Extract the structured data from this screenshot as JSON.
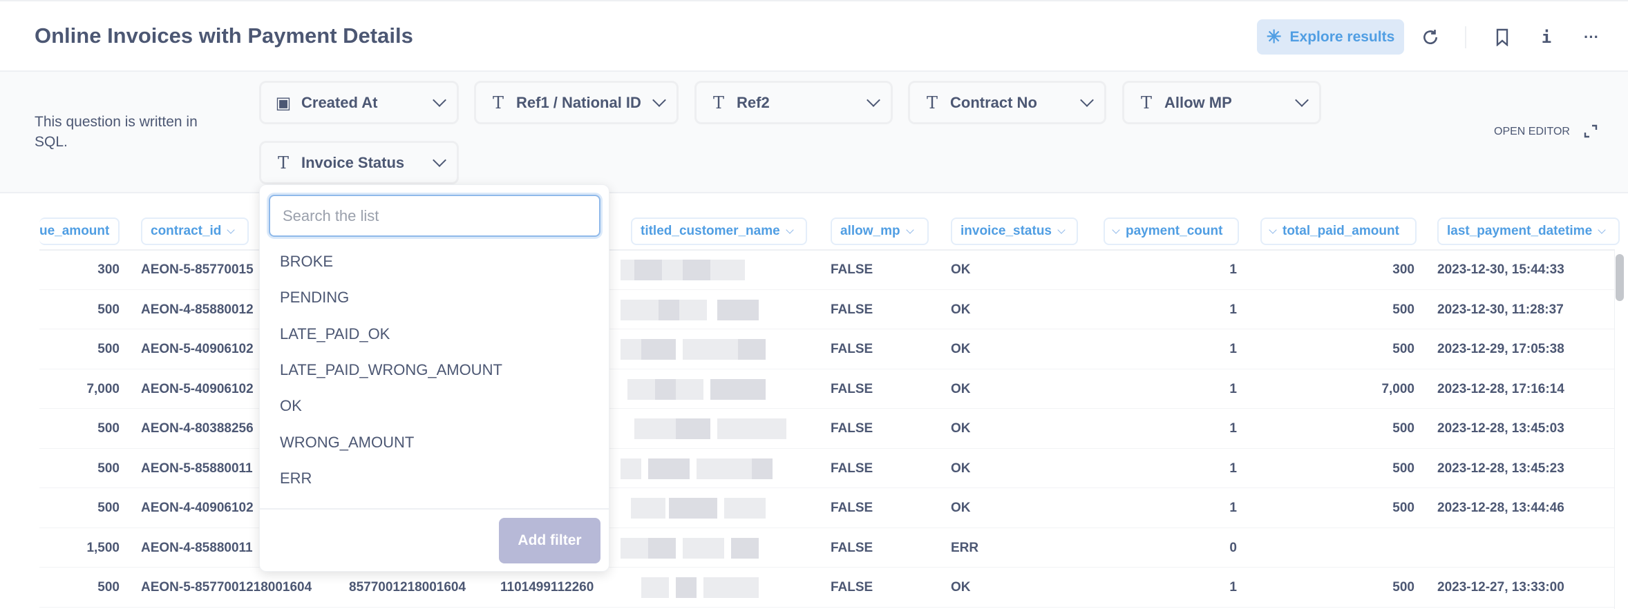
{
  "header": {
    "title": "Online Invoices with Payment Details",
    "explore_label": "Explore results",
    "icons": [
      "sparkle-icon",
      "refresh-icon",
      "bookmark-icon",
      "info-icon",
      "more-icon"
    ]
  },
  "filters": {
    "sql_note": "This question is written in SQL.",
    "open_editor": "OPEN EDITOR",
    "chips": [
      {
        "label": "Created At",
        "icon": "calendar-icon"
      },
      {
        "label": "Ref1 / National ID",
        "icon": "text-icon"
      },
      {
        "label": "Ref2",
        "icon": "text-icon"
      },
      {
        "label": "Contract No",
        "icon": "text-icon"
      },
      {
        "label": "Allow MP",
        "icon": "text-icon"
      },
      {
        "label": "Invoice Status",
        "icon": "text-icon"
      }
    ]
  },
  "dropdown": {
    "search_placeholder": "Search the list",
    "options": [
      "BROKE",
      "PENDING",
      "LATE_PAID_OK",
      "LATE_PAID_WRONG_AMOUNT",
      "OK",
      "WRONG_AMOUNT",
      "ERR"
    ],
    "add_filter": "Add filter"
  },
  "table": {
    "columns": [
      "ue_amount",
      "contract_id",
      "titled_customer_name",
      "allow_mp",
      "invoice_status",
      "payment_count",
      "total_paid_amount",
      "last_payment_datetime"
    ],
    "rows": [
      {
        "amount": "300",
        "contract_id": "AEON-5-85770015",
        "c3": "",
        "c4": "",
        "allow_mp": "FALSE",
        "invoice_status": "OK",
        "payment_count": "1",
        "total_paid_amount": "300",
        "last_payment_datetime": "2023-12-30, 15:44:33"
      },
      {
        "amount": "500",
        "contract_id": "AEON-4-85880012",
        "c3": "",
        "c4": "",
        "allow_mp": "FALSE",
        "invoice_status": "OK",
        "payment_count": "1",
        "total_paid_amount": "500",
        "last_payment_datetime": "2023-12-30, 11:28:37"
      },
      {
        "amount": "500",
        "contract_id": "AEON-5-40906102",
        "c3": "",
        "c4": "",
        "allow_mp": "FALSE",
        "invoice_status": "OK",
        "payment_count": "1",
        "total_paid_amount": "500",
        "last_payment_datetime": "2023-12-29, 17:05:38"
      },
      {
        "amount": "7,000",
        "contract_id": "AEON-5-40906102",
        "c3": "",
        "c4": "",
        "allow_mp": "FALSE",
        "invoice_status": "OK",
        "payment_count": "1",
        "total_paid_amount": "7,000",
        "last_payment_datetime": "2023-12-28, 17:16:14"
      },
      {
        "amount": "500",
        "contract_id": "AEON-4-80388256",
        "c3": "",
        "c4": "",
        "allow_mp": "FALSE",
        "invoice_status": "OK",
        "payment_count": "1",
        "total_paid_amount": "500",
        "last_payment_datetime": "2023-12-28, 13:45:03"
      },
      {
        "amount": "500",
        "contract_id": "AEON-5-85880011",
        "c3": "",
        "c4": "",
        "allow_mp": "FALSE",
        "invoice_status": "OK",
        "payment_count": "1",
        "total_paid_amount": "500",
        "last_payment_datetime": "2023-12-28, 13:45:23"
      },
      {
        "amount": "500",
        "contract_id": "AEON-4-40906102",
        "c3": "",
        "c4": "",
        "allow_mp": "FALSE",
        "invoice_status": "OK",
        "payment_count": "1",
        "total_paid_amount": "500",
        "last_payment_datetime": "2023-12-28, 13:44:46"
      },
      {
        "amount": "1,500",
        "contract_id": "AEON-4-85880011",
        "c3": "",
        "c4": "",
        "allow_mp": "FALSE",
        "invoice_status": "ERR",
        "payment_count": "0",
        "total_paid_amount": "",
        "last_payment_datetime": ""
      },
      {
        "amount": "500",
        "contract_id": "AEON-5-8577001218001604",
        "c3": "8577001218001604",
        "c4": "1101499112260",
        "allow_mp": "FALSE",
        "invoice_status": "OK",
        "payment_count": "1",
        "total_paid_amount": "500",
        "last_payment_datetime": "2023-12-27, 13:33:00"
      }
    ]
  },
  "colors": {
    "accent": "#509ee3",
    "text": "#4c5773",
    "add_filter_bg": "#b7b9d7"
  }
}
